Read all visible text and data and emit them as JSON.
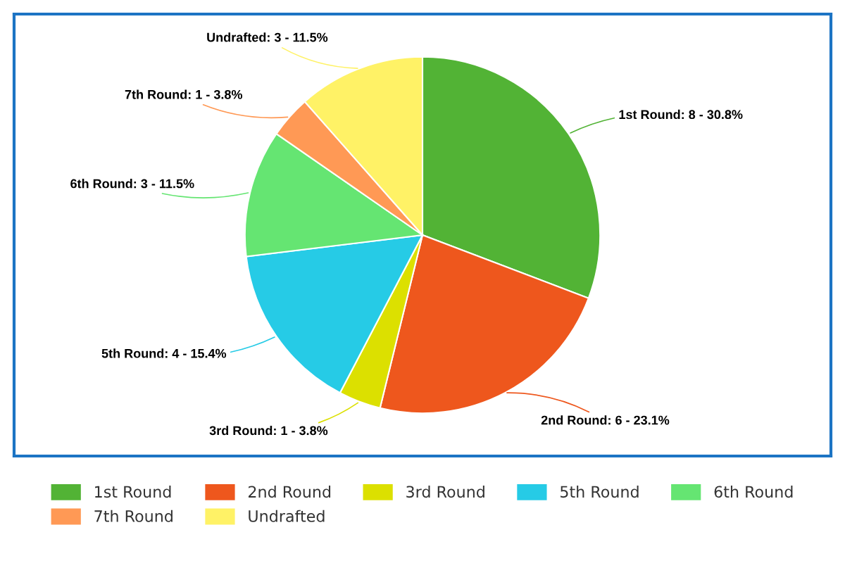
{
  "chart_data": {
    "type": "pie",
    "categories": [
      "1st Round",
      "2nd Round",
      "3rd Round",
      "5th Round",
      "6th Round",
      "7th Round",
      "Undrafted"
    ],
    "values": [
      8,
      6,
      1,
      4,
      3,
      1,
      3
    ],
    "colors": [
      "#52b335",
      "#ee571d",
      "#dce000",
      "#26cbe6",
      "#65e572",
      "#ff9955",
      "#fff266"
    ],
    "value_labels": [
      "1st Round: 8 - 30.8%",
      "2nd Round: 6 - 23.1%",
      "3rd Round: 1 - 3.8%",
      "5th Round: 4 - 15.4%",
      "6th Round: 3 - 11.5%",
      "7th Round: 1 - 3.8%",
      "Undrafted: 3 - 11.5%"
    ],
    "legend": "bottom"
  }
}
